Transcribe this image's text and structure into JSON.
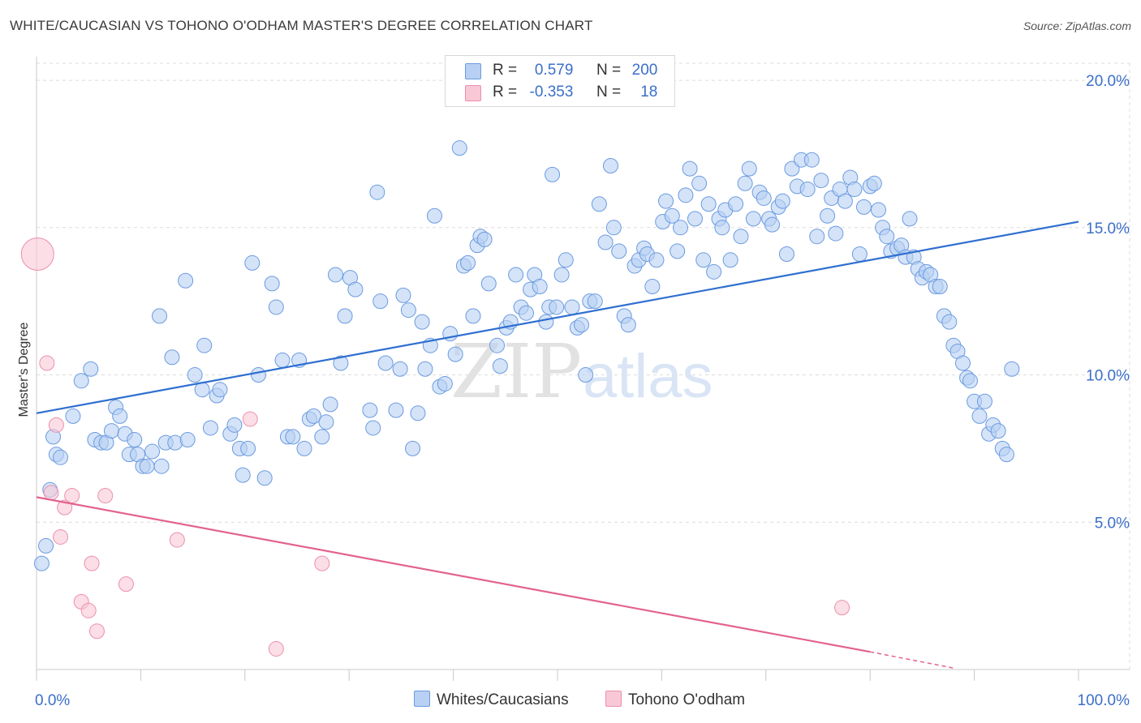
{
  "title": "WHITE/CAUCASIAN VS TOHONO O'ODHAM MASTER'S DEGREE CORRELATION CHART",
  "source": "Source: ZipAtlas.com",
  "watermark": {
    "zip": "ZIP",
    "atlas": "atlas"
  },
  "legend": {
    "series1": {
      "r_label": "R =",
      "r_value": "0.579",
      "n_label": "N =",
      "n_value": "200"
    },
    "series2": {
      "r_label": "R =",
      "r_value": "-0.353",
      "n_label": "N =",
      "n_value": "18"
    }
  },
  "colors": {
    "blue_fill": "#b8d0f3",
    "blue_stroke": "#6b9be0",
    "blue_line": "#2f6fd0",
    "pink_fill": "#f8c8d6",
    "pink_stroke": "#ec8fae",
    "pink_line": "#e3628f",
    "tick_label": "#3b6fc9",
    "grid": "#dcdcdc"
  },
  "chart_data": {
    "type": "scatter",
    "ylabel": "Master's Degree",
    "xlim": [
      0,
      100
    ],
    "ylim": [
      0,
      20.8
    ],
    "x_tick_labels": [
      {
        "value": 0,
        "label": "0.0%"
      },
      {
        "value": 100,
        "label": "100.0%"
      }
    ],
    "y_tick_labels": [
      {
        "value": 5,
        "label": "5.0%"
      },
      {
        "value": 10,
        "label": "10.0%"
      },
      {
        "value": 15,
        "label": "15.0%"
      },
      {
        "value": 20,
        "label": "20.0%"
      }
    ],
    "series": [
      {
        "name": "Whites/Caucasians",
        "color": "blue",
        "trend": {
          "x": [
            0,
            100
          ],
          "y": [
            8.7,
            15.2
          ]
        },
        "points": [
          [
            0.5,
            3.6
          ],
          [
            0.9,
            4.2
          ],
          [
            1.3,
            6.1
          ],
          [
            1.6,
            7.9
          ],
          [
            1.9,
            7.3
          ],
          [
            2.3,
            7.2
          ],
          [
            3.5,
            8.6
          ],
          [
            4.3,
            9.8
          ],
          [
            5.2,
            10.2
          ],
          [
            5.6,
            7.8
          ],
          [
            6.2,
            7.7
          ],
          [
            6.7,
            7.7
          ],
          [
            7.2,
            8.1
          ],
          [
            7.6,
            8.9
          ],
          [
            8.0,
            8.6
          ],
          [
            8.5,
            8.0
          ],
          [
            8.9,
            7.3
          ],
          [
            9.4,
            7.8
          ],
          [
            9.7,
            7.3
          ],
          [
            10.2,
            6.9
          ],
          [
            10.6,
            6.9
          ],
          [
            11.1,
            7.4
          ],
          [
            11.8,
            12.0
          ],
          [
            12.0,
            6.9
          ],
          [
            12.4,
            7.7
          ],
          [
            13.0,
            10.6
          ],
          [
            13.3,
            7.7
          ],
          [
            14.3,
            13.2
          ],
          [
            14.5,
            7.8
          ],
          [
            15.2,
            10.0
          ],
          [
            15.9,
            9.5
          ],
          [
            16.1,
            11.0
          ],
          [
            16.7,
            8.2
          ],
          [
            17.3,
            9.3
          ],
          [
            17.6,
            9.5
          ],
          [
            18.6,
            8.0
          ],
          [
            19.0,
            8.3
          ],
          [
            19.5,
            7.5
          ],
          [
            19.8,
            6.6
          ],
          [
            20.3,
            7.5
          ],
          [
            20.7,
            13.8
          ],
          [
            21.3,
            10.0
          ],
          [
            21.9,
            6.5
          ],
          [
            22.6,
            13.1
          ],
          [
            23.0,
            12.3
          ],
          [
            23.6,
            10.5
          ],
          [
            24.1,
            7.9
          ],
          [
            24.6,
            7.9
          ],
          [
            25.2,
            10.5
          ],
          [
            25.7,
            7.5
          ],
          [
            26.2,
            8.5
          ],
          [
            26.6,
            8.6
          ],
          [
            27.4,
            7.9
          ],
          [
            27.8,
            8.4
          ],
          [
            28.2,
            9.0
          ],
          [
            28.7,
            13.4
          ],
          [
            29.2,
            10.4
          ],
          [
            29.6,
            12.0
          ],
          [
            30.1,
            13.3
          ],
          [
            30.6,
            12.9
          ],
          [
            32.0,
            8.8
          ],
          [
            32.3,
            8.2
          ],
          [
            32.7,
            16.2
          ],
          [
            33.0,
            12.5
          ],
          [
            33.5,
            10.4
          ],
          [
            34.5,
            8.8
          ],
          [
            34.9,
            10.2
          ],
          [
            35.2,
            12.7
          ],
          [
            35.7,
            12.2
          ],
          [
            36.1,
            7.5
          ],
          [
            36.6,
            8.7
          ],
          [
            37.0,
            11.8
          ],
          [
            37.3,
            10.2
          ],
          [
            37.8,
            11.0
          ],
          [
            38.2,
            15.4
          ],
          [
            38.7,
            9.6
          ],
          [
            39.2,
            9.7
          ],
          [
            39.7,
            11.4
          ],
          [
            40.2,
            10.7
          ],
          [
            40.6,
            17.7
          ],
          [
            41.0,
            13.7
          ],
          [
            41.4,
            13.8
          ],
          [
            41.9,
            12.0
          ],
          [
            42.3,
            14.4
          ],
          [
            42.6,
            14.7
          ],
          [
            43.0,
            14.6
          ],
          [
            43.4,
            13.1
          ],
          [
            44.2,
            11.0
          ],
          [
            44.5,
            10.3
          ],
          [
            45.1,
            11.6
          ],
          [
            45.5,
            11.8
          ],
          [
            46.0,
            13.4
          ],
          [
            46.5,
            12.3
          ],
          [
            47.0,
            12.1
          ],
          [
            47.4,
            12.9
          ],
          [
            47.8,
            13.4
          ],
          [
            48.3,
            13.0
          ],
          [
            48.9,
            11.8
          ],
          [
            49.2,
            12.3
          ],
          [
            49.5,
            16.8
          ],
          [
            49.9,
            12.3
          ],
          [
            50.4,
            13.4
          ],
          [
            50.8,
            13.9
          ],
          [
            51.4,
            12.3
          ],
          [
            51.9,
            11.6
          ],
          [
            52.3,
            11.7
          ],
          [
            52.7,
            10.0
          ],
          [
            53.1,
            12.5
          ],
          [
            53.6,
            12.5
          ],
          [
            54.0,
            15.8
          ],
          [
            54.6,
            14.5
          ],
          [
            55.1,
            17.1
          ],
          [
            55.4,
            15.0
          ],
          [
            55.9,
            14.2
          ],
          [
            56.4,
            12.0
          ],
          [
            56.8,
            11.7
          ],
          [
            57.4,
            13.7
          ],
          [
            57.8,
            13.9
          ],
          [
            58.3,
            14.3
          ],
          [
            58.6,
            14.1
          ],
          [
            59.1,
            13.0
          ],
          [
            59.5,
            13.9
          ],
          [
            60.1,
            15.2
          ],
          [
            60.4,
            15.9
          ],
          [
            61.0,
            15.4
          ],
          [
            61.5,
            14.2
          ],
          [
            61.8,
            15.0
          ],
          [
            62.3,
            16.1
          ],
          [
            62.7,
            17.0
          ],
          [
            63.2,
            15.3
          ],
          [
            63.6,
            16.5
          ],
          [
            64.0,
            13.9
          ],
          [
            64.5,
            15.8
          ],
          [
            65.0,
            13.5
          ],
          [
            65.5,
            15.3
          ],
          [
            65.8,
            15.0
          ],
          [
            66.1,
            15.6
          ],
          [
            66.6,
            13.9
          ],
          [
            67.1,
            15.8
          ],
          [
            67.6,
            14.7
          ],
          [
            68.0,
            16.5
          ],
          [
            68.4,
            17.0
          ],
          [
            68.8,
            15.3
          ],
          [
            69.4,
            16.2
          ],
          [
            69.8,
            16.0
          ],
          [
            70.3,
            15.3
          ],
          [
            70.6,
            15.1
          ],
          [
            71.2,
            15.7
          ],
          [
            71.6,
            15.9
          ],
          [
            72.0,
            14.1
          ],
          [
            72.5,
            17.0
          ],
          [
            73.0,
            16.4
          ],
          [
            73.4,
            17.3
          ],
          [
            74.0,
            16.3
          ],
          [
            74.4,
            17.3
          ],
          [
            74.9,
            14.7
          ],
          [
            75.3,
            16.6
          ],
          [
            75.9,
            15.4
          ],
          [
            76.3,
            16.0
          ],
          [
            76.7,
            14.8
          ],
          [
            77.1,
            16.3
          ],
          [
            77.6,
            15.9
          ],
          [
            78.1,
            16.7
          ],
          [
            78.5,
            16.3
          ],
          [
            79.0,
            14.1
          ],
          [
            79.4,
            15.7
          ],
          [
            80.0,
            16.4
          ],
          [
            80.4,
            16.5
          ],
          [
            80.8,
            15.6
          ],
          [
            81.2,
            15.0
          ],
          [
            81.6,
            14.7
          ],
          [
            82.0,
            14.2
          ],
          [
            82.6,
            14.3
          ],
          [
            83.0,
            14.4
          ],
          [
            83.4,
            14.0
          ],
          [
            83.8,
            15.3
          ],
          [
            84.2,
            14.0
          ],
          [
            84.6,
            13.6
          ],
          [
            85.0,
            13.3
          ],
          [
            85.4,
            13.5
          ],
          [
            85.8,
            13.4
          ],
          [
            86.3,
            13.0
          ],
          [
            86.7,
            13.0
          ],
          [
            87.1,
            12.0
          ],
          [
            87.6,
            11.8
          ],
          [
            88.0,
            11.0
          ],
          [
            88.4,
            10.8
          ],
          [
            88.9,
            10.4
          ],
          [
            89.3,
            9.9
          ],
          [
            89.6,
            9.8
          ],
          [
            90.0,
            9.1
          ],
          [
            90.5,
            8.6
          ],
          [
            91.0,
            9.1
          ],
          [
            91.4,
            8.0
          ],
          [
            91.8,
            8.3
          ],
          [
            92.3,
            8.1
          ],
          [
            92.7,
            7.5
          ],
          [
            93.1,
            7.3
          ],
          [
            93.6,
            10.2
          ]
        ]
      },
      {
        "name": "Tohono O'odham",
        "color": "pink",
        "trend": {
          "x": [
            0,
            80
          ],
          "y": [
            5.85,
            0.6
          ]
        },
        "trend_dashed": {
          "x": [
            80,
            88
          ],
          "y": [
            0.6,
            0.05
          ]
        },
        "points": [
          [
            0.1,
            14.1
          ],
          [
            1.0,
            10.4
          ],
          [
            1.4,
            6.0
          ],
          [
            1.9,
            8.3
          ],
          [
            2.3,
            4.5
          ],
          [
            2.7,
            5.5
          ],
          [
            3.4,
            5.9
          ],
          [
            4.3,
            2.3
          ],
          [
            5.0,
            2.0
          ],
          [
            5.3,
            3.6
          ],
          [
            5.8,
            1.3
          ],
          [
            6.6,
            5.9
          ],
          [
            8.6,
            2.9
          ],
          [
            13.5,
            4.4
          ],
          [
            20.5,
            8.5
          ],
          [
            23.0,
            0.7
          ],
          [
            27.4,
            3.6
          ],
          [
            77.3,
            2.1
          ]
        ],
        "sizes": {
          "0": 20
        }
      }
    ]
  },
  "bottom_legend": [
    {
      "label": "Whites/Caucasians",
      "color": "blue"
    },
    {
      "label": "Tohono O'odham",
      "color": "pink"
    }
  ]
}
